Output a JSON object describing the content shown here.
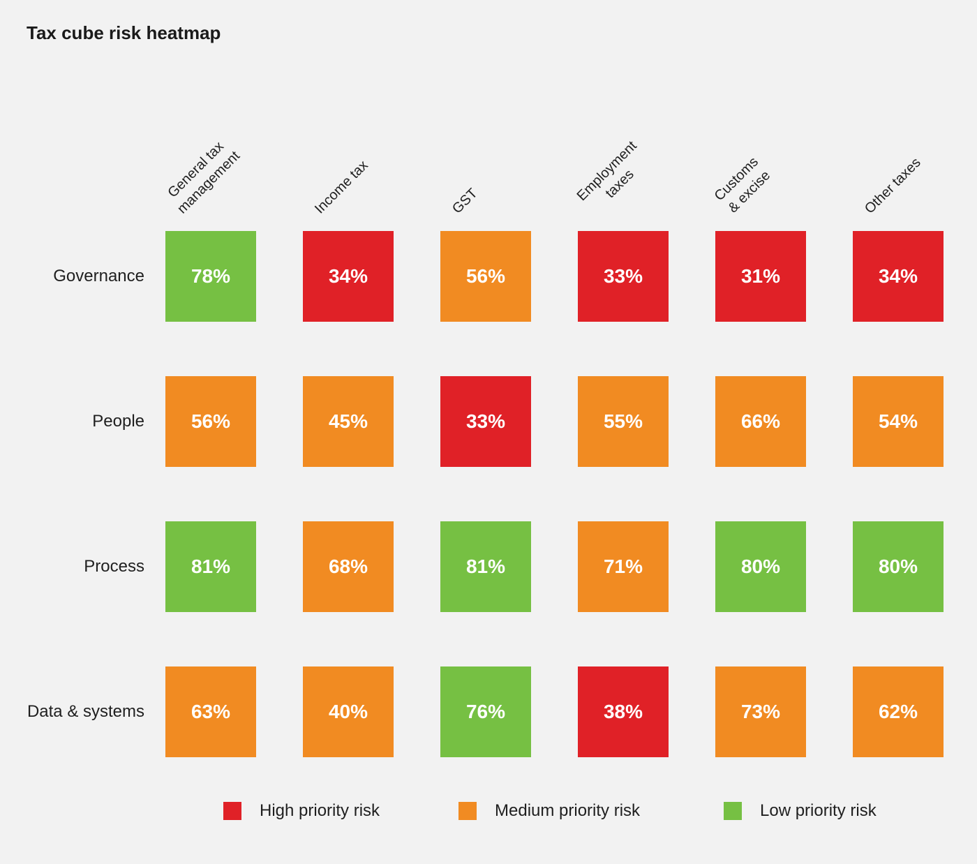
{
  "title": "Tax cube risk heatmap",
  "colors": {
    "background": "#f2f2f2",
    "high": "#e02127",
    "medium": "#f18b22",
    "low": "#76c043",
    "value_text": "#ffffff",
    "label_text": "#1f1f1f"
  },
  "chart_data": {
    "type": "heatmap",
    "title": "Tax cube risk heatmap",
    "columns": [
      "General tax\nmanagement",
      "Income tax",
      "GST",
      "Employment\ntaxes",
      "Customs\n& excise",
      "Other taxes"
    ],
    "rows": [
      "Governance",
      "People",
      "Process",
      "Data & systems"
    ],
    "values": [
      [
        78,
        34,
        56,
        33,
        31,
        34
      ],
      [
        56,
        45,
        33,
        55,
        66,
        54
      ],
      [
        81,
        68,
        81,
        71,
        80,
        80
      ],
      [
        63,
        40,
        76,
        38,
        73,
        62
      ]
    ],
    "levels": [
      [
        "low",
        "high",
        "medium",
        "high",
        "high",
        "high"
      ],
      [
        "medium",
        "medium",
        "high",
        "medium",
        "medium",
        "medium"
      ],
      [
        "low",
        "medium",
        "low",
        "medium",
        "low",
        "low"
      ],
      [
        "medium",
        "medium",
        "low",
        "high",
        "medium",
        "medium"
      ]
    ],
    "value_suffix": "%",
    "legend": [
      {
        "label": "High priority risk",
        "level": "high"
      },
      {
        "label": "Medium priority risk",
        "level": "medium"
      },
      {
        "label": "Low priority risk",
        "level": "low"
      }
    ],
    "legend_position": "bottom",
    "grid": false
  }
}
